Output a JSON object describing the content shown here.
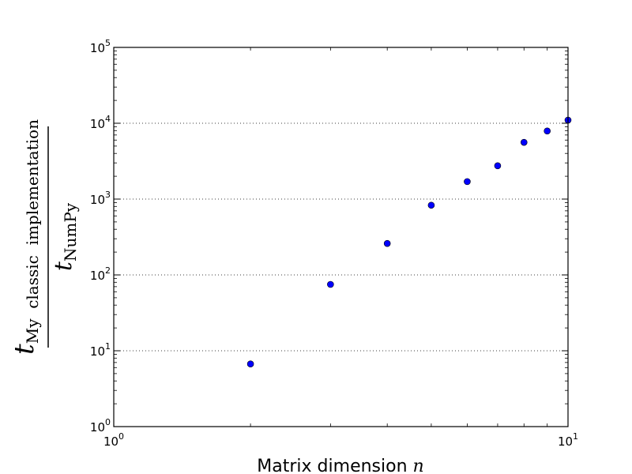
{
  "chart_data": {
    "type": "scatter",
    "xscale": "log",
    "yscale": "log",
    "xlim": [
      1,
      10
    ],
    "ylim": [
      1,
      100000
    ],
    "grid": "y-major-dotted",
    "marker_color": "#0000ff",
    "x_ticks": [
      {
        "value": 1,
        "base": "10",
        "exp": "0"
      },
      {
        "value": 10,
        "base": "10",
        "exp": "1"
      }
    ],
    "y_ticks": [
      {
        "value": 1,
        "base": "10",
        "exp": "0"
      },
      {
        "value": 10,
        "base": "10",
        "exp": "1"
      },
      {
        "value": 100,
        "base": "10",
        "exp": "2"
      },
      {
        "value": 1000,
        "base": "10",
        "exp": "3"
      },
      {
        "value": 10000,
        "base": "10",
        "exp": "4"
      },
      {
        "value": 100000,
        "base": "10",
        "exp": "5"
      }
    ],
    "xlabel": {
      "text": "Matrix dimension ",
      "var": "n"
    },
    "ylabel": {
      "numerator_var": "t",
      "numerator_sub": "My  classic  implementation",
      "denominator_var": "t",
      "denominator_sub": "NumPy"
    },
    "points": [
      {
        "x": 2,
        "y": 6.7
      },
      {
        "x": 3,
        "y": 75
      },
      {
        "x": 4,
        "y": 260
      },
      {
        "x": 5,
        "y": 830
      },
      {
        "x": 6,
        "y": 1700
      },
      {
        "x": 7,
        "y": 2750
      },
      {
        "x": 8,
        "y": 5600
      },
      {
        "x": 9,
        "y": 7900
      },
      {
        "x": 10,
        "y": 11000
      }
    ]
  }
}
